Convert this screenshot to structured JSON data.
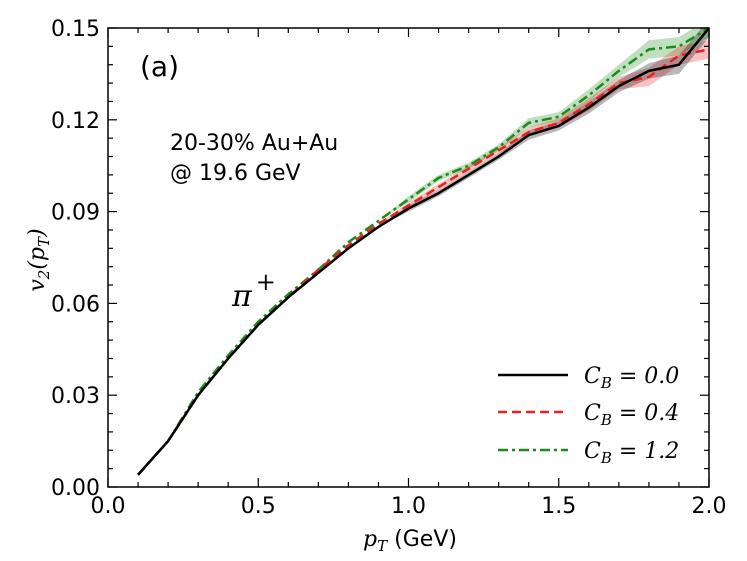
{
  "chart_data": {
    "type": "line",
    "panel_label": "(a)",
    "annotation_lines": [
      "20-30% Au+Au",
      "@ 19.6 GeV"
    ],
    "particle_label": "π",
    "particle_charge": "+",
    "xlabel": {
      "var": "p",
      "sub": "T",
      "unit": " (GeV)"
    },
    "ylabel": {
      "var": "v",
      "sub": "2",
      "open": "(",
      "arg": "p",
      "argsub": "T",
      "close": ")"
    },
    "xlim": [
      0.0,
      2.0
    ],
    "ylim": [
      0.0,
      0.15
    ],
    "xticks": [
      0.0,
      0.5,
      1.0,
      1.5,
      2.0
    ],
    "xtick_labels": [
      "0.0",
      "0.5",
      "1.0",
      "1.5",
      "2.0"
    ],
    "yticks": [
      0.0,
      0.03,
      0.06,
      0.09,
      0.12,
      0.15
    ],
    "ytick_labels": [
      "0.00",
      "0.03",
      "0.06",
      "0.09",
      "0.12",
      "0.15"
    ],
    "grid": false,
    "legend_position": "bottom-right",
    "x": [
      0.1,
      0.2,
      0.3,
      0.4,
      0.5,
      0.6,
      0.7,
      0.8,
      0.9,
      1.0,
      1.1,
      1.2,
      1.3,
      1.4,
      1.5,
      1.6,
      1.7,
      1.8,
      1.9,
      2.0
    ],
    "series": [
      {
        "name": "C_B = 0.0",
        "legend_var": "C",
        "legend_sub": "B",
        "legend_eq": " = 0.0",
        "color": "#000000",
        "dash": "solid",
        "values": [
          0.004,
          0.015,
          0.03,
          0.042,
          0.053,
          0.062,
          0.07,
          0.078,
          0.085,
          0.091,
          0.096,
          0.102,
          0.108,
          0.115,
          0.118,
          0.124,
          0.131,
          0.136,
          0.138,
          0.15
        ],
        "band": [
          0.0,
          0.0,
          0.0,
          0.0,
          0.0,
          0.0,
          0.0,
          0.0,
          0.0,
          0.001,
          0.001,
          0.001,
          0.001,
          0.0015,
          0.0015,
          0.002,
          0.002,
          0.0025,
          0.003,
          0.003
        ]
      },
      {
        "name": "C_B = 0.4",
        "legend_var": "C",
        "legend_sub": "B",
        "legend_eq": " = 0.4",
        "color": "#e8211c",
        "dash": "dashed",
        "values": [
          0.004,
          0.015,
          0.03,
          0.042,
          0.053,
          0.062,
          0.071,
          0.079,
          0.086,
          0.092,
          0.098,
          0.104,
          0.11,
          0.116,
          0.119,
          0.125,
          0.132,
          0.134,
          0.141,
          0.143
        ],
        "band": [
          0.0,
          0.0,
          0.0,
          0.0,
          0.0,
          0.0,
          0.0,
          0.0,
          0.0,
          0.001,
          0.001,
          0.001,
          0.001,
          0.0015,
          0.0015,
          0.002,
          0.002,
          0.003,
          0.003,
          0.003
        ]
      },
      {
        "name": "C_B = 1.2",
        "legend_var": "C",
        "legend_sub": "B",
        "legend_eq": " = 1.2",
        "color": "#1a8c1a",
        "dash": "dashdot",
        "values": [
          0.004,
          0.015,
          0.031,
          0.043,
          0.054,
          0.063,
          0.071,
          0.08,
          0.087,
          0.094,
          0.101,
          0.105,
          0.111,
          0.119,
          0.121,
          0.128,
          0.136,
          0.143,
          0.144,
          0.15
        ],
        "band": [
          0.0,
          0.0,
          0.0,
          0.0,
          0.0,
          0.0,
          0.0,
          0.0,
          0.0,
          0.001,
          0.001,
          0.001,
          0.001,
          0.0015,
          0.0015,
          0.002,
          0.002,
          0.003,
          0.003,
          0.003
        ]
      }
    ]
  }
}
